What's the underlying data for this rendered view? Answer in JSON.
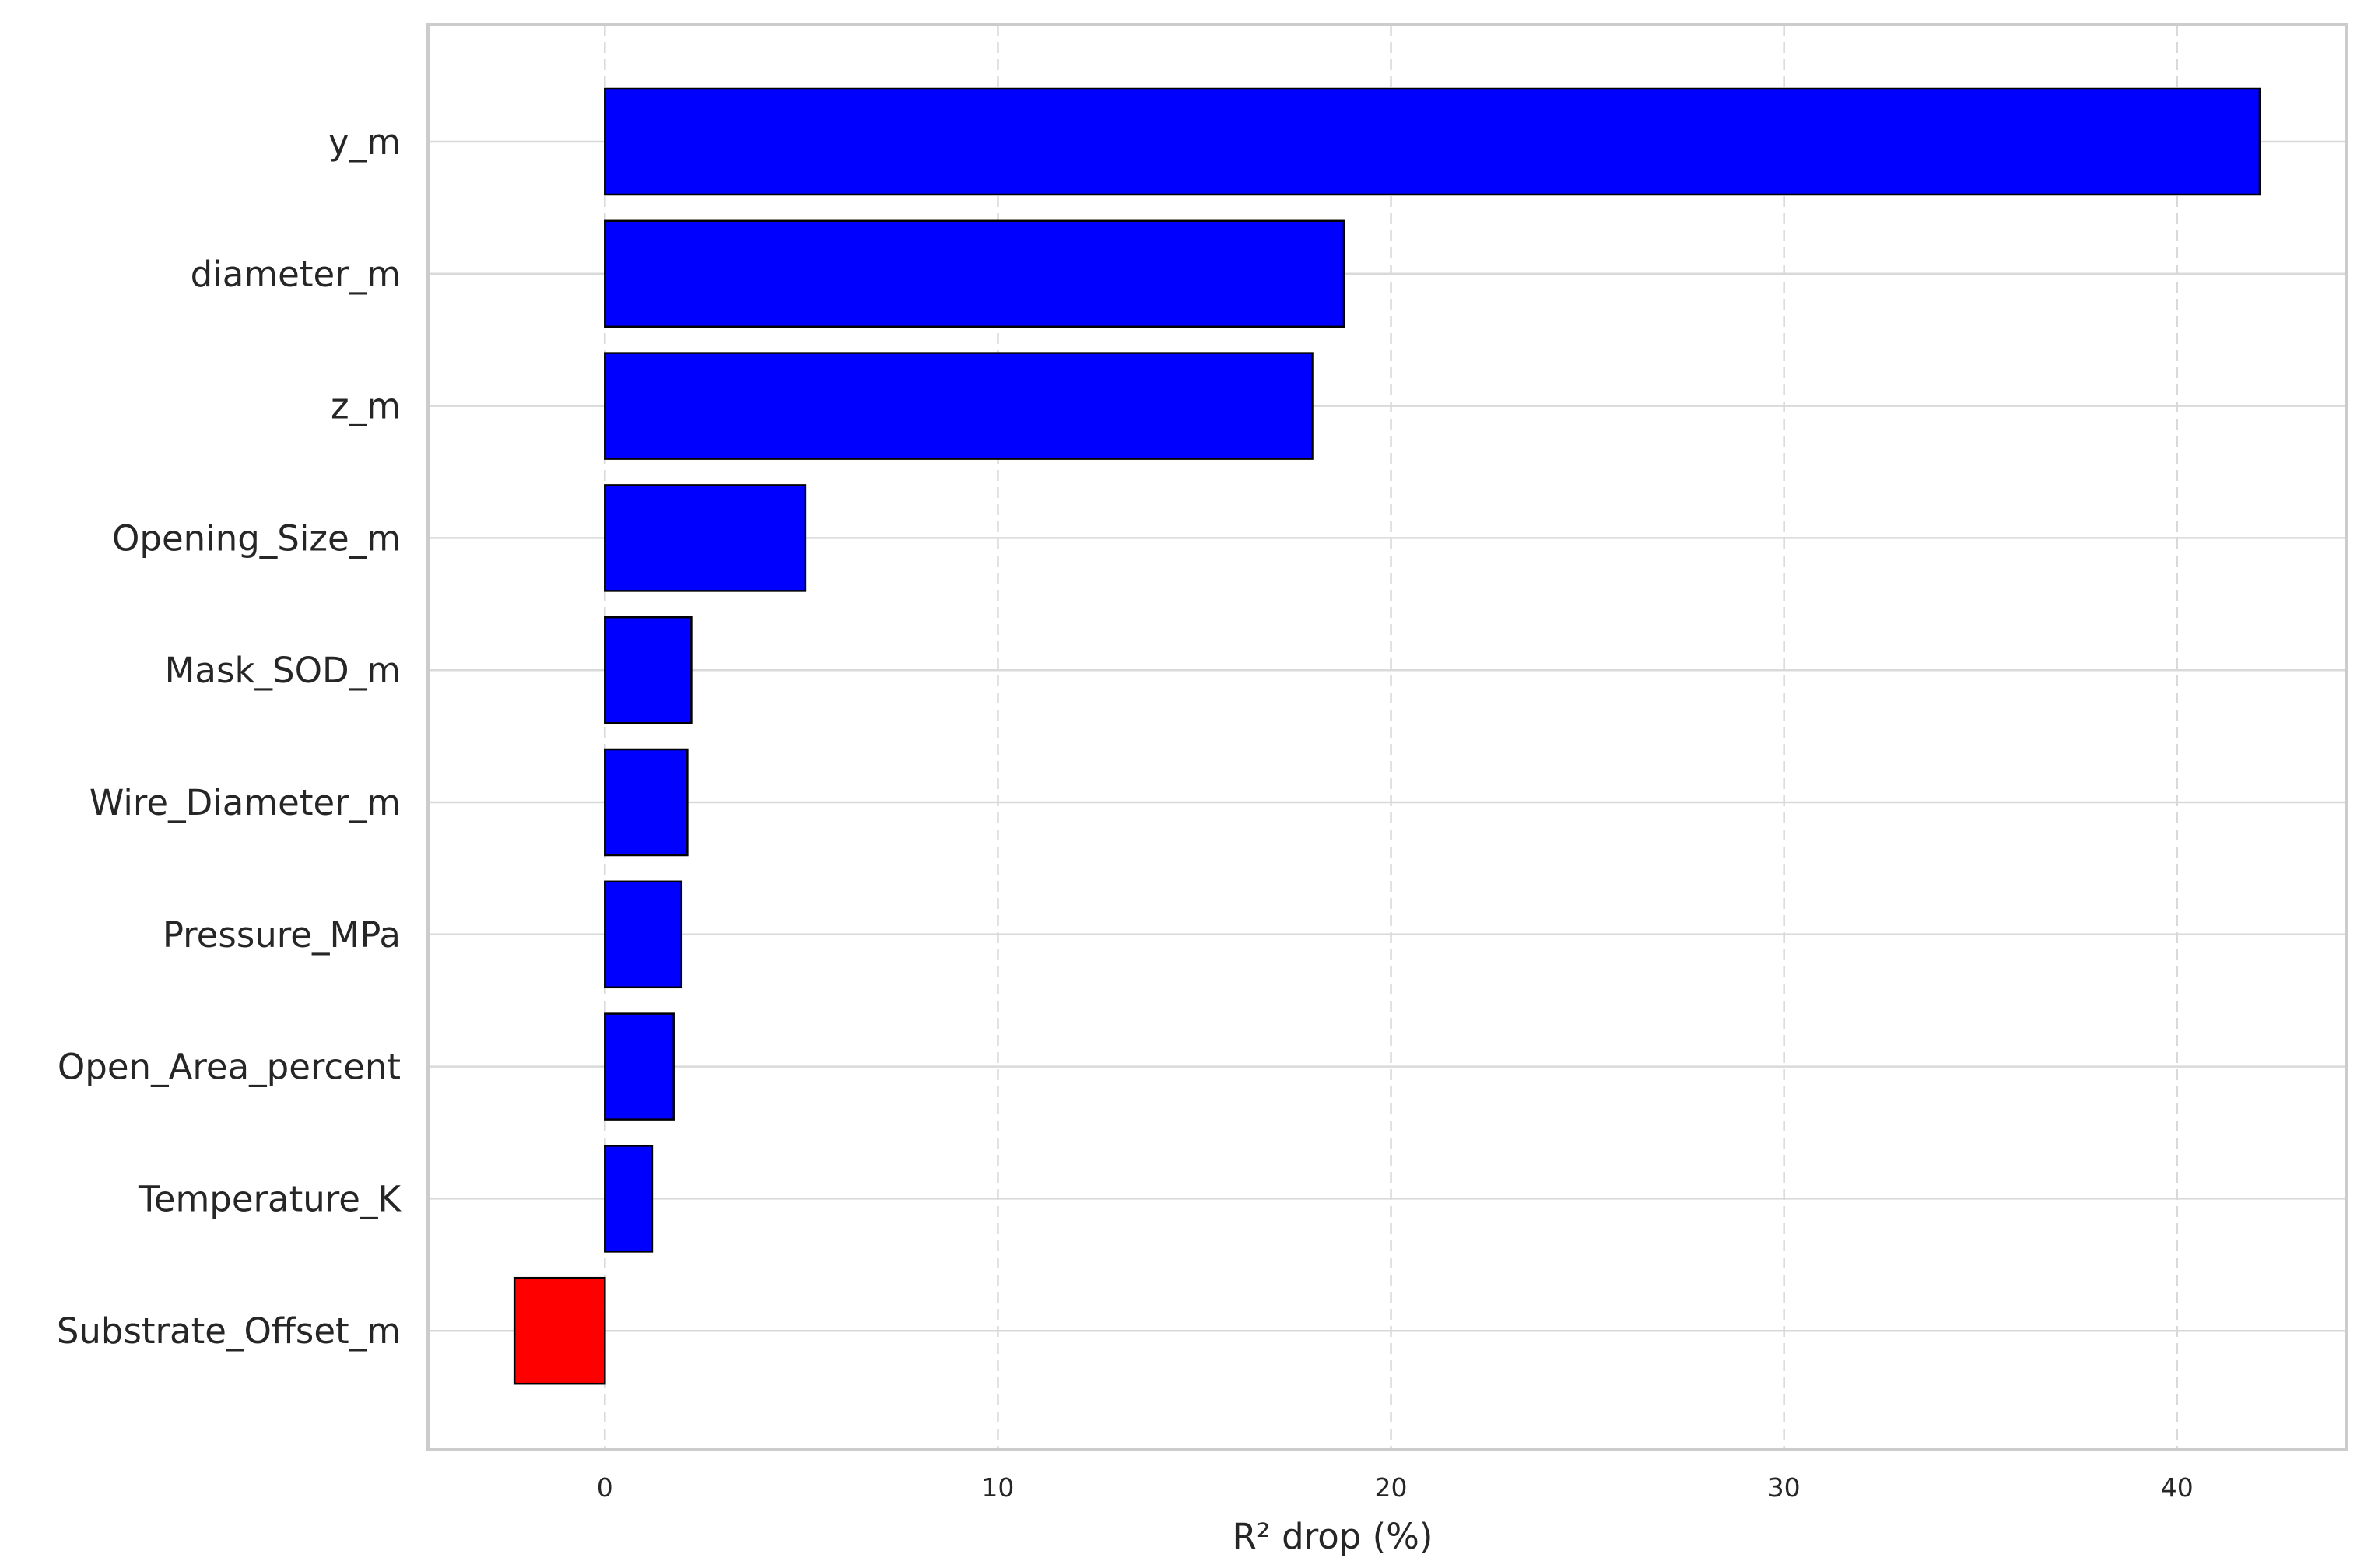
{
  "chart_data": {
    "type": "bar",
    "orientation": "horizontal",
    "categories": [
      "y_m",
      "diameter_m",
      "z_m",
      "Opening_Size_m",
      "Mask_SOD_m",
      "Wire_Diameter_m",
      "Pressure_MPa",
      "Open_Area_percent",
      "Temperature_K",
      "Substrate_Offset_m"
    ],
    "values": [
      42.1,
      18.8,
      18.0,
      5.1,
      2.2,
      2.1,
      1.95,
      1.75,
      1.2,
      -2.3
    ],
    "title": "",
    "xlabel": "R² drop (%)",
    "ylabel": "",
    "xlim": [
      -4.5,
      44.3
    ],
    "xticks": [
      0,
      10,
      20,
      30,
      40
    ],
    "grid": "vertical dashed at x ticks, horizontal solid at categories",
    "colors": {
      "positive": "#0000ff",
      "negative": "#ff0000",
      "edge": "#000000",
      "grid": "#d9d9d9",
      "frame": "#cccccc"
    }
  }
}
